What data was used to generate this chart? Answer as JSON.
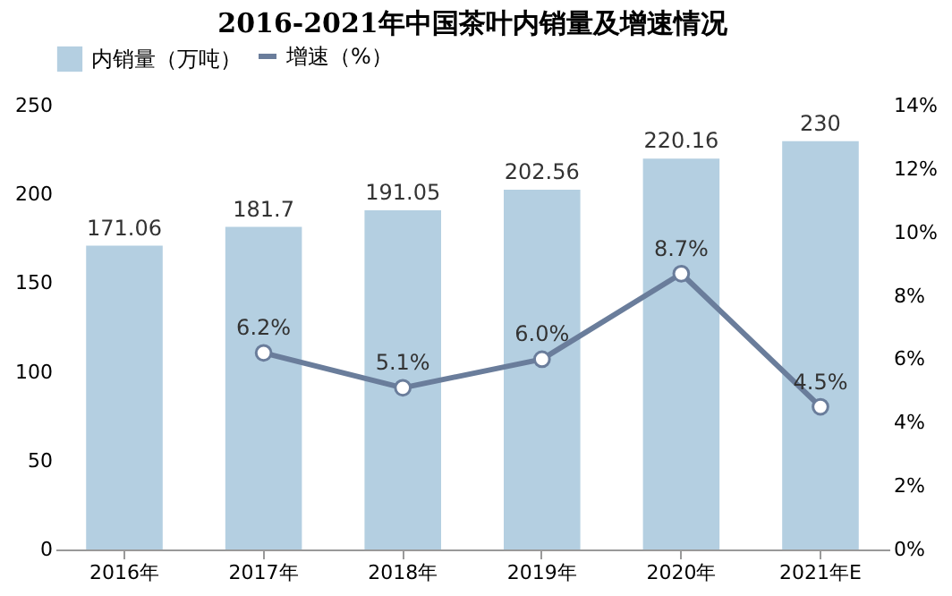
{
  "chart_data": {
    "type": "bar",
    "title": "2016-2021年中国茶叶内销量及增速情况",
    "categories": [
      "2016年",
      "2017年",
      "2018年",
      "2019年",
      "2020年",
      "2021年E"
    ],
    "series": [
      {
        "name": "内销量（万吨）",
        "color": "#b4cfe1",
        "values": [
          171.06,
          181.7,
          191.05,
          202.56,
          220.16,
          230
        ]
      },
      {
        "name": "增速（%）",
        "type": "line",
        "axis": "y2",
        "color": "#6a7d9b",
        "marker": "circle",
        "values": [
          null,
          6.2,
          5.1,
          6.0,
          8.7,
          4.5
        ],
        "value_labels": [
          null,
          "6.2%",
          "5.1%",
          "6.0%",
          "8.7%",
          "4.5%"
        ]
      }
    ],
    "data_labels": true,
    "ylim": [
      0,
      250
    ],
    "yticks": [
      0,
      50,
      100,
      150,
      200,
      250
    ],
    "y2lim": [
      0,
      14
    ],
    "y2ticks": [
      {
        "value": 0,
        "label": "0%"
      },
      {
        "value": 2,
        "label": "2%"
      },
      {
        "value": 4,
        "label": "4%"
      },
      {
        "value": 6,
        "label": "6%"
      },
      {
        "value": 8,
        "label": "8%"
      },
      {
        "value": 10,
        "label": "10%"
      },
      {
        "value": 12,
        "label": "12%"
      },
      {
        "value": 14,
        "label": "14%"
      }
    ],
    "grid": false,
    "legend": "top"
  }
}
